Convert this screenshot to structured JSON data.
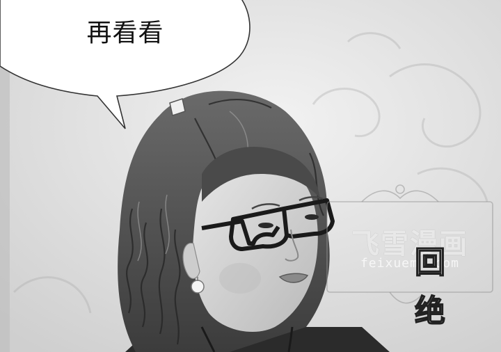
{
  "speech_bubble": {
    "text": "再看看"
  },
  "watermark": {
    "title": "飞雪漫画",
    "url": "feixuem    .com"
  },
  "sound_effect": {
    "chars": [
      "回",
      "绝"
    ]
  },
  "colors": {
    "background": "#d9d9d9",
    "bubble_fill": "#ffffff",
    "outline": "#333333"
  }
}
